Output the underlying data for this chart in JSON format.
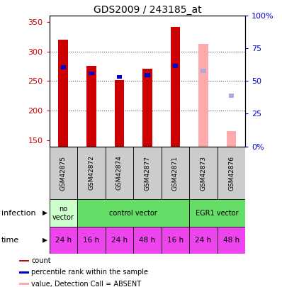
{
  "title": "GDS2009 / 243185_at",
  "samples": [
    "GSM42875",
    "GSM42872",
    "GSM42874",
    "GSM42877",
    "GSM42871",
    "GSM42873",
    "GSM42876"
  ],
  "count_values": [
    320,
    276,
    252,
    271,
    341,
    null,
    null
  ],
  "rank_values": [
    273,
    263,
    257,
    260,
    276,
    null,
    null
  ],
  "count_absent": [
    null,
    null,
    null,
    null,
    null,
    313,
    166
  ],
  "rank_absent": [
    null,
    null,
    null,
    null,
    null,
    267,
    225
  ],
  "ylim_left": [
    140,
    360
  ],
  "ylim_right": [
    0,
    100
  ],
  "yticks_left": [
    150,
    200,
    250,
    300,
    350
  ],
  "yticks_right": [
    0,
    25,
    50,
    75,
    100
  ],
  "yticklabels_right": [
    "0%",
    "25",
    "50",
    "75",
    "100%"
  ],
  "count_color": "#cc0000",
  "rank_color": "#0000cc",
  "count_absent_color": "#ffaaaa",
  "rank_absent_color": "#aaaadd",
  "bar_width": 0.35,
  "time_labels": [
    "24 h",
    "16 h",
    "24 h",
    "48 h",
    "16 h",
    "24 h",
    "48 h"
  ],
  "time_color": "#ee44ee",
  "grid_color": "#555555",
  "label_color_left": "#cc0000",
  "label_color_right": "#0000cc",
  "sample_box_color": "#cccccc",
  "no_vector_color": "#ccffcc",
  "control_vector_color": "#66dd66",
  "egr1_vector_color": "#66dd66",
  "legend_items": [
    {
      "label": "count",
      "color": "#cc0000"
    },
    {
      "label": "percentile rank within the sample",
      "color": "#0000cc"
    },
    {
      "label": "value, Detection Call = ABSENT",
      "color": "#ffaaaa"
    },
    {
      "label": "rank, Detection Call = ABSENT",
      "color": "#aaaadd"
    }
  ]
}
